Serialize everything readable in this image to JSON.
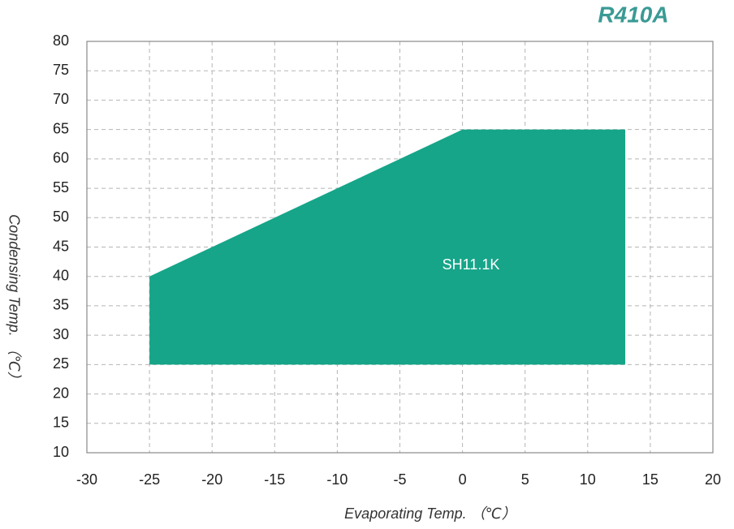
{
  "chart_data": {
    "type": "area",
    "title": "R410A",
    "x_label": "Evaporating Temp. （℃）",
    "y_label": "Condensing Temp. （℃）",
    "series": [
      {
        "name": "SH11.1K",
        "color": "#16a589",
        "x": [
          -25,
          0,
          13,
          13,
          -25
        ],
        "values": [
          40,
          65,
          65,
          25,
          25
        ]
      }
    ],
    "xlim": [
      -30,
      20
    ],
    "xticks": [
      -30,
      -25,
      -20,
      -15,
      -10,
      -5,
      0,
      5,
      10,
      15,
      20
    ],
    "ylim": [
      10,
      80
    ],
    "yticks": [
      10,
      15,
      20,
      25,
      30,
      35,
      40,
      45,
      50,
      55,
      60,
      65,
      70,
      75,
      80
    ],
    "grid": true
  }
}
